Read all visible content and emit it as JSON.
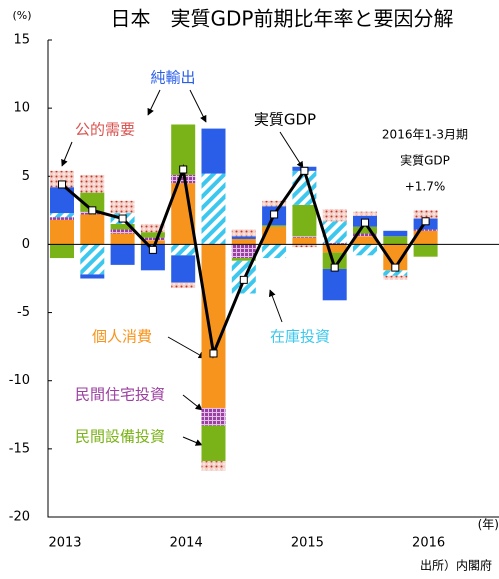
{
  "chart_data": {
    "type": "stacked_bar_line",
    "title": "日本　実質GDP前期比年率と要因分解",
    "y_unit": "(%)",
    "x_unit": "(年)",
    "source": "出所）内閣府",
    "annotation": [
      "2016年1-3月期",
      "実質GDP",
      "+1.7%"
    ],
    "categories": [
      "2013",
      null,
      null,
      null,
      "2014",
      null,
      null,
      null,
      "2015",
      null,
      null,
      null,
      "2016"
    ],
    "ylim": [
      -20,
      15
    ],
    "yticks": [
      15,
      10,
      5,
      0,
      -5,
      -10,
      -15,
      -20
    ],
    "series": [
      {
        "name": "個人消費",
        "color": "#f7941d",
        "values": [
          1.8,
          2.2,
          0.8,
          0.3,
          4.5,
          -12.0,
          0.4,
          1.3,
          0.5,
          -0.6,
          0.6,
          -1.9,
          1.0
        ]
      },
      {
        "name": "民間住宅投資",
        "color": "#9b3fa0",
        "values": [
          0.2,
          0.2,
          0.3,
          0.2,
          0.6,
          -1.3,
          -1.0,
          0.0,
          0.1,
          0.1,
          0.2,
          0.0,
          0.1
        ]
      },
      {
        "name": "民間設備投資",
        "color": "#7ab317",
        "values": [
          -1.0,
          1.4,
          0.4,
          0.4,
          3.7,
          -2.6,
          -0.2,
          0.1,
          2.3,
          -1.2,
          0.5,
          0.6,
          -0.9
        ]
      },
      {
        "name": "在庫投資",
        "color": "#3cc8ee",
        "values": [
          0.3,
          -2.2,
          0.8,
          0.0,
          -0.8,
          5.2,
          -2.4,
          -1.0,
          2.5,
          1.6,
          -0.8,
          -0.4,
          0.0
        ]
      },
      {
        "name": "純輸出",
        "color": "#2a5ee8",
        "values": [
          1.9,
          -0.3,
          -1.5,
          -1.9,
          -2.0,
          3.3,
          0.2,
          1.4,
          0.3,
          -2.3,
          0.8,
          0.4,
          0.8
        ]
      },
      {
        "name": "公的需要",
        "color": "#d9534f",
        "values": [
          1.2,
          1.3,
          0.9,
          0.6,
          -0.4,
          -0.7,
          0.5,
          0.4,
          -0.2,
          0.9,
          0.3,
          -0.3,
          0.6
        ]
      }
    ],
    "line": {
      "name": "実質GDP",
      "color": "#000000",
      "values": [
        4.4,
        2.5,
        1.9,
        -0.4,
        5.5,
        -8.0,
        -2.6,
        2.2,
        5.4,
        -1.7,
        1.6,
        -1.7,
        1.7
      ]
    }
  }
}
